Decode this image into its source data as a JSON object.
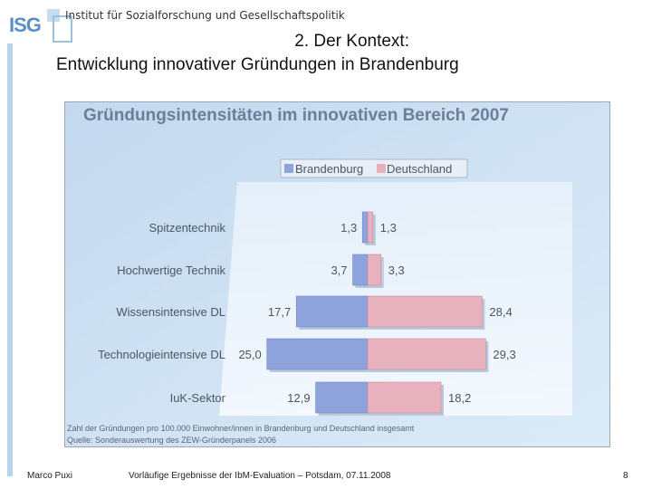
{
  "header": {
    "logo": "ISG",
    "institute": "Institut für Sozialforschung und Gesellschaftspolitik",
    "title_line1": "2. Der Kontext:",
    "title_line2": "Entwicklung innovativer Gründungen in Brandenburg"
  },
  "chart_data": {
    "type": "bar",
    "orientation": "horizontal-butterfly",
    "title": "Gründungsintensitäten im innovativen Bereich 2007",
    "categories": [
      "Spitzentechnik",
      "Hochwertige Technik",
      "Wissensintensive DL",
      "Technologieintensive DL",
      "IuK-Sektor"
    ],
    "series": [
      {
        "name": "Brandenburg",
        "values": [
          1.3,
          3.7,
          17.7,
          25.0,
          12.9
        ],
        "labels": [
          "1,3",
          "3,7",
          "17,7",
          "25,0",
          "12,9"
        ],
        "color": "#8ea3dc"
      },
      {
        "name": "Deutschland",
        "values": [
          1.3,
          3.3,
          28.4,
          29.3,
          18.2
        ],
        "labels": [
          "1,3",
          "3,3",
          "28,4",
          "29,3",
          "18,2"
        ],
        "color": "#e7b2bd"
      }
    ],
    "legend": "top",
    "grid": false,
    "note": "Zahl der Gründungen pro 100.000 Einwohner/innen in Brandenburg und Deutschland insgesamt",
    "source": "Quelle: Sonderauswertung des ZEW-Gründerpanels 2006"
  },
  "footer": {
    "author": "Marco Puxi",
    "event": "Vorläufige Ergebnisse der IbM-Evaluation – Potsdam, 07.11.2008",
    "page": "8"
  }
}
